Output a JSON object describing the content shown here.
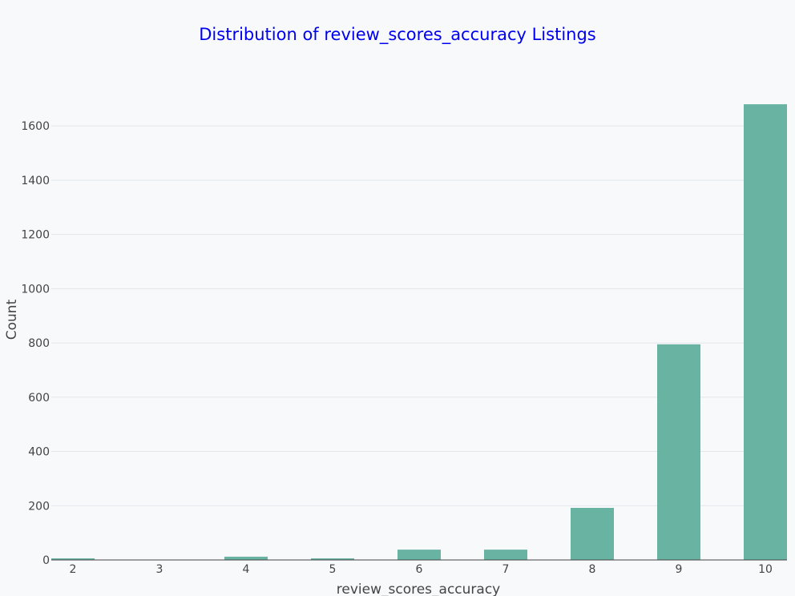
{
  "colors": {
    "background": "#f7f9fb",
    "bar": "#69b3a2",
    "title": "#0000ee",
    "grid": "#e3e7eb",
    "axis_line": "#444444",
    "text": "#444444"
  },
  "chart_data": {
    "type": "bar",
    "title": "Distribution of review_scores_accuracy Listings",
    "xlabel": "review_scores_accuracy",
    "ylabel": "Count",
    "categories": [
      "2",
      "3",
      "4",
      "5",
      "6",
      "7",
      "8",
      "9",
      "10"
    ],
    "values": [
      6,
      0,
      12,
      6,
      38,
      38,
      192,
      795,
      1680
    ],
    "x_ticks": [
      "2",
      "3",
      "4",
      "5",
      "6",
      "7",
      "8",
      "9",
      "10"
    ],
    "y_ticks": [
      "0",
      "200",
      "400",
      "600",
      "800",
      "1000",
      "1200",
      "1400",
      "1600"
    ],
    "ylim": [
      0,
      1769
    ],
    "grid": true,
    "legend": "none"
  }
}
